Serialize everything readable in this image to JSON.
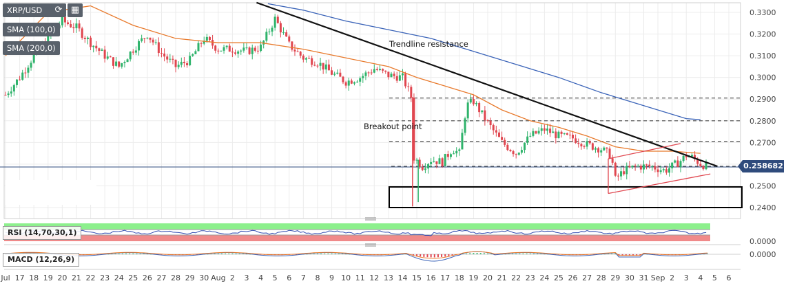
{
  "pair": "XRP/USD",
  "controls": {
    "refresh_icon": "refresh-icon",
    "calendar_icon": "calendar-icon"
  },
  "indicators": {
    "sma100": "SMA (100,0)",
    "sma200": "SMA (200,0)",
    "rsi": "RSI (14,70,30,1)",
    "macd": "MACD (12,26,9)"
  },
  "current_price": "0.258682",
  "colors": {
    "up": "#2fb36b",
    "down": "#e0464f",
    "sma100": "#e8792b",
    "sma200": "#3a63b8",
    "price_line": "#2f4b7c",
    "rsi_line": "#2f4bb0",
    "rsi_upper_band": "#8df08d",
    "rsi_lower_band": "#f08a8a"
  },
  "annotations": {
    "trendline": "Trendline resistance",
    "breakout": "Breakout point"
  },
  "chart_data": {
    "type": "candlestick",
    "y_ticks": [
      "0.3300",
      "0.3200",
      "0.3100",
      "0.3000",
      "0.2900",
      "0.2800",
      "0.2700",
      "0.2600",
      "0.2500",
      "0.2400"
    ],
    "rsi_tick": "0.0000",
    "macd_tick": "0.0000",
    "x_ticks": [
      "Jul",
      "17",
      "18",
      "19",
      "20",
      "21",
      "22",
      "23",
      "24",
      "25",
      "26",
      "27",
      "28",
      "29",
      "30",
      "Aug",
      "2",
      "3",
      "4",
      "5",
      "6",
      "7",
      "8",
      "9",
      "10",
      "11",
      "12",
      "13",
      "14",
      "15",
      "16",
      "17",
      "18",
      "19",
      "20",
      "21",
      "22",
      "23",
      "24",
      "25",
      "26",
      "27",
      "28",
      "29",
      "30",
      "31",
      "Sep",
      "2",
      "3",
      "4",
      "5",
      "6"
    ],
    "price_range": [
      0.24,
      0.33
    ],
    "dashed_levels": [
      0.2905,
      0.28,
      0.2705,
      0.259
    ],
    "support_box": [
      0.24,
      0.2495
    ],
    "close_path": [
      [
        0,
        0.292
      ],
      [
        1,
        0.3
      ],
      [
        2,
        0.31
      ],
      [
        3,
        0.318
      ],
      [
        4,
        0.326
      ],
      [
        5,
        0.323
      ],
      [
        6,
        0.316
      ],
      [
        7,
        0.31
      ],
      [
        8,
        0.305
      ],
      [
        9,
        0.313
      ],
      [
        10,
        0.32
      ],
      [
        11,
        0.311
      ],
      [
        12,
        0.305
      ],
      [
        13,
        0.308
      ],
      [
        14,
        0.318
      ],
      [
        15,
        0.313
      ],
      [
        16,
        0.313
      ],
      [
        17,
        0.312
      ],
      [
        18,
        0.314
      ],
      [
        19,
        0.327
      ],
      [
        20,
        0.315
      ],
      [
        21,
        0.309
      ],
      [
        22,
        0.307
      ],
      [
        23,
        0.302
      ],
      [
        24,
        0.298
      ],
      [
        25,
        0.3
      ],
      [
        26,
        0.304
      ],
      [
        27,
        0.301
      ],
      [
        28,
        0.3
      ],
      [
        28.6,
        0.291
      ],
      [
        28.8,
        0.263
      ],
      [
        29.4,
        0.259
      ],
      [
        30,
        0.262
      ],
      [
        30.8,
        0.261
      ],
      [
        31.5,
        0.267
      ],
      [
        32,
        0.265
      ],
      [
        32.5,
        0.287
      ],
      [
        33,
        0.289
      ],
      [
        34,
        0.279
      ],
      [
        35,
        0.27
      ],
      [
        36,
        0.265
      ],
      [
        37,
        0.273
      ],
      [
        38,
        0.276
      ],
      [
        39,
        0.273
      ],
      [
        40,
        0.272
      ],
      [
        41,
        0.269
      ],
      [
        42,
        0.267
      ],
      [
        42.7,
        0.264
      ],
      [
        43,
        0.253
      ],
      [
        43.6,
        0.257
      ],
      [
        44.5,
        0.259
      ],
      [
        45.5,
        0.259
      ],
      [
        46.5,
        0.257
      ],
      [
        47.5,
        0.261
      ],
      [
        48,
        0.264
      ],
      [
        48.5,
        0.263
      ],
      [
        49,
        0.26
      ],
      [
        49.5,
        0.259
      ]
    ],
    "trendline": [
      [
        17.7,
        0.3345
      ],
      [
        50.2,
        0.259
      ]
    ],
    "sma100": [
      [
        0,
        0.31
      ],
      [
        3,
        0.33
      ],
      [
        6,
        0.333
      ],
      [
        9,
        0.324
      ],
      [
        12,
        0.318
      ],
      [
        15,
        0.316
      ],
      [
        18,
        0.316
      ],
      [
        21,
        0.313
      ],
      [
        24,
        0.309
      ],
      [
        27,
        0.305
      ],
      [
        29,
        0.3
      ],
      [
        31,
        0.296
      ],
      [
        33,
        0.292
      ],
      [
        35,
        0.285
      ],
      [
        37,
        0.28
      ],
      [
        39,
        0.277
      ],
      [
        41,
        0.273
      ],
      [
        43,
        0.268
      ],
      [
        45,
        0.266
      ],
      [
        47,
        0.266
      ],
      [
        49,
        0.265
      ]
    ],
    "sma200": [
      [
        18.5,
        0.334
      ],
      [
        21,
        0.331
      ],
      [
        24,
        0.326
      ],
      [
        27,
        0.322
      ],
      [
        30,
        0.318
      ],
      [
        33,
        0.312
      ],
      [
        36,
        0.306
      ],
      [
        39,
        0.3
      ],
      [
        42,
        0.293
      ],
      [
        45,
        0.287
      ],
      [
        48,
        0.281
      ],
      [
        49,
        0.2805
      ]
    ],
    "channel_upper": [
      [
        42.5,
        0.2625
      ],
      [
        47.6,
        0.2695
      ]
    ],
    "channel_lower": [
      [
        42.5,
        0.2465
      ],
      [
        49.7,
        0.2555
      ]
    ]
  }
}
